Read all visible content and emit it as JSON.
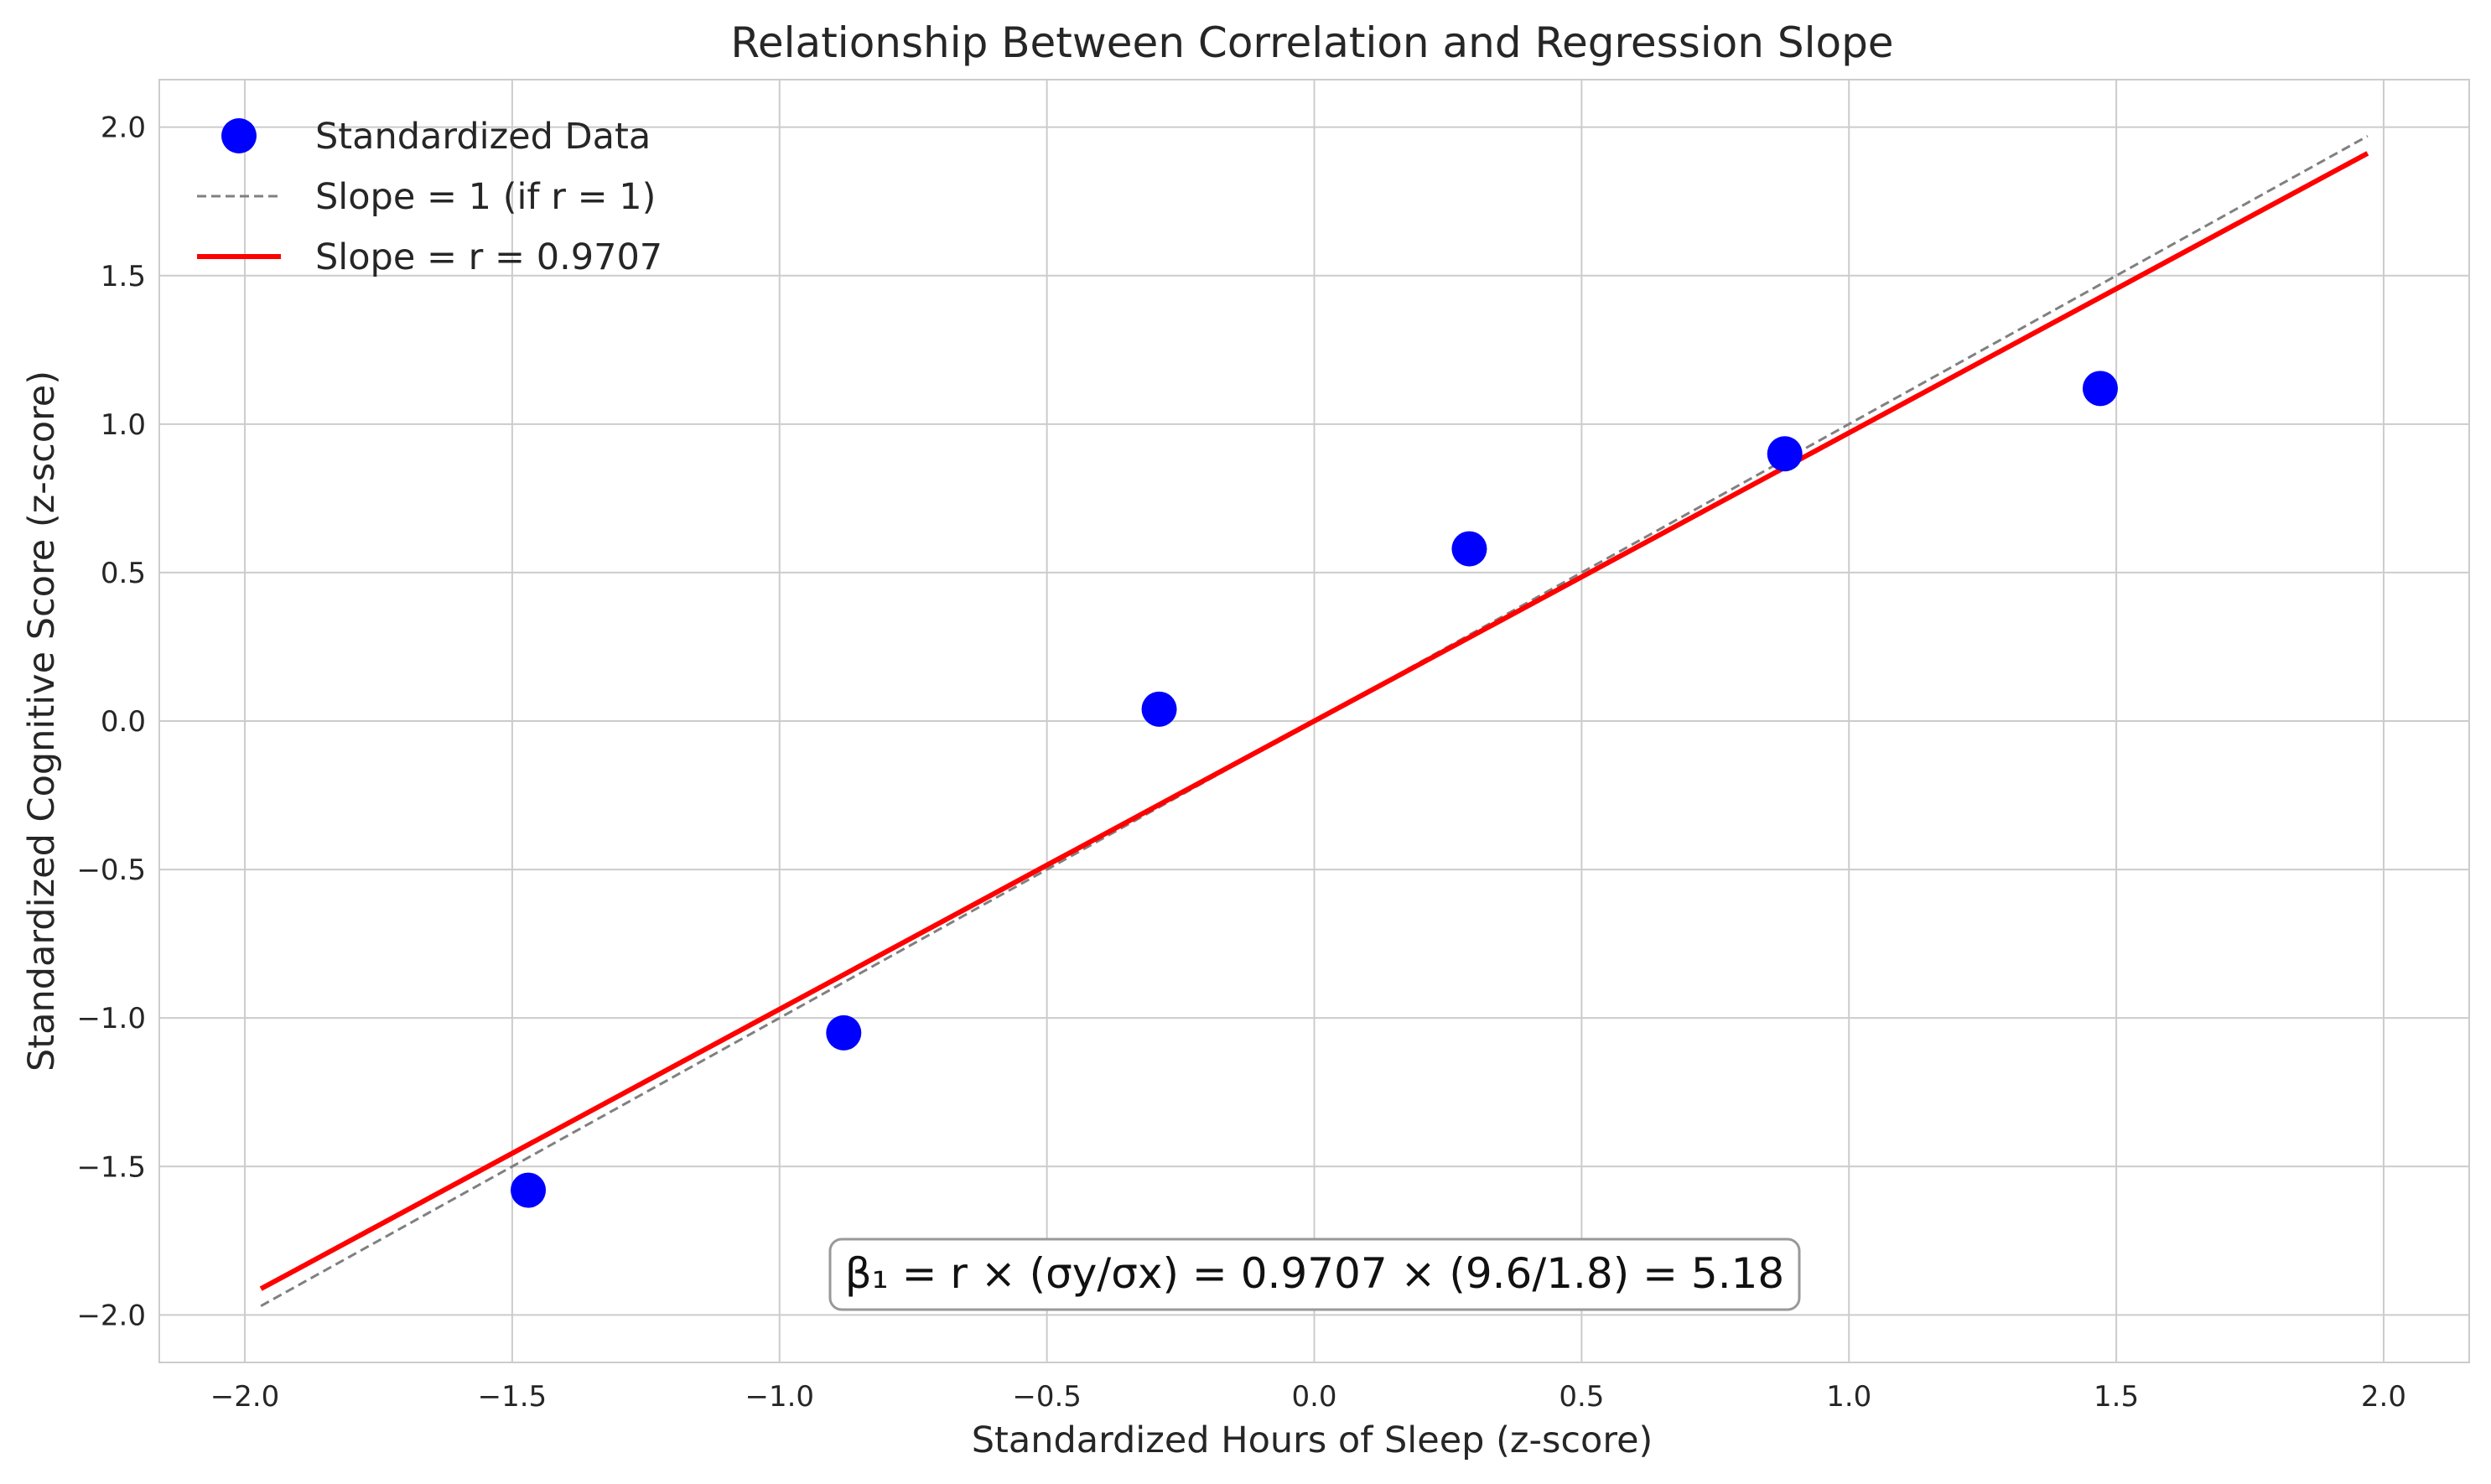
{
  "chart_data": {
    "type": "scatter",
    "title": "Relationship Between Correlation and Regression Slope",
    "xlabel": "Standardized Hours of Sleep (z-score)",
    "ylabel": "Standardized Cognitive Score (z-score)",
    "xlim": [
      -2.16,
      2.16
    ],
    "ylim": [
      -2.16,
      2.16
    ],
    "xticks": [
      -2.0,
      -1.5,
      -1.0,
      -0.5,
      0.0,
      0.5,
      1.0,
      1.5,
      2.0
    ],
    "xtick_labels": [
      "−2.0",
      "−1.5",
      "−1.0",
      "−0.5",
      "0.0",
      "0.5",
      "1.0",
      "1.5",
      "2.0"
    ],
    "yticks": [
      -2.0,
      -1.5,
      -1.0,
      -0.5,
      0.0,
      0.5,
      1.0,
      1.5,
      2.0
    ],
    "ytick_labels": [
      "−2.0",
      "−1.5",
      "−1.0",
      "−0.5",
      "0.0",
      "0.5",
      "1.0",
      "1.5",
      "2.0"
    ],
    "grid": true,
    "legend_position": "top-left",
    "series": [
      {
        "name": "Standardized Data",
        "kind": "scatter",
        "color": "#0000ff",
        "x": [
          -1.47,
          -0.88,
          -0.29,
          0.29,
          0.88,
          1.47
        ],
        "y": [
          -1.58,
          -1.05,
          0.04,
          0.58,
          0.9,
          1.12
        ]
      },
      {
        "name": "Slope = 1 (if r = 1)",
        "kind": "line",
        "style": "dashed",
        "color": "#808080",
        "x": [
          -1.97,
          1.97
        ],
        "y": [
          -1.97,
          1.97
        ]
      },
      {
        "name": "Slope = r = 0.9707",
        "kind": "line",
        "style": "solid",
        "color": "#ff0000",
        "x": [
          -1.97,
          1.97
        ],
        "y": [
          -1.912,
          1.912
        ]
      }
    ],
    "annotation": "β₁ = r × (σy/σx) = 0.9707 × (9.6/1.8) = 5.18"
  }
}
